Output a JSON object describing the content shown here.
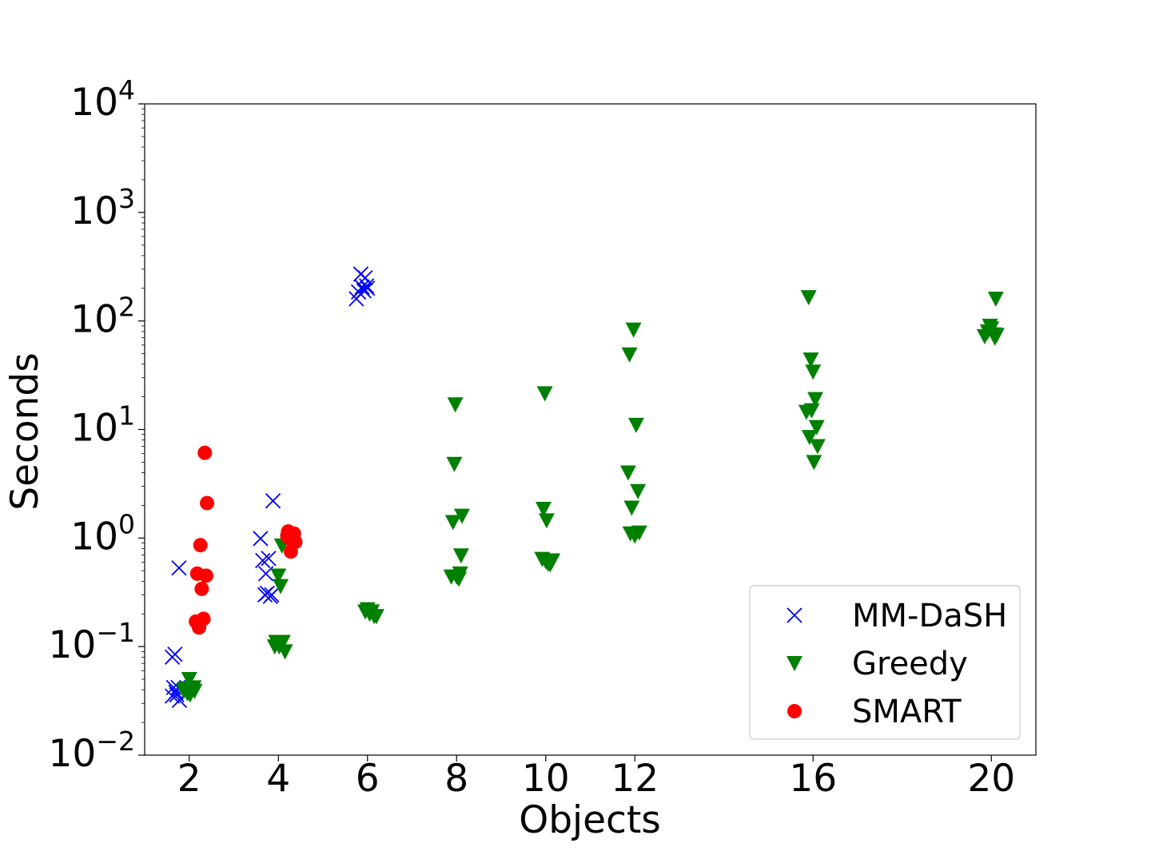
{
  "chart_data": {
    "type": "scatter",
    "title": "",
    "xlabel": "Objects",
    "ylabel": "Seconds",
    "xscale": "linear",
    "yscale": "log",
    "xlim": [
      1,
      21
    ],
    "ylim": [
      0.01,
      10000
    ],
    "x_ticks": [
      {
        "value": 2,
        "label": "2"
      },
      {
        "value": 4,
        "label": "4"
      },
      {
        "value": 6,
        "label": "6"
      },
      {
        "value": 8,
        "label": "8"
      },
      {
        "value": 10,
        "label": "10"
      },
      {
        "value": 12,
        "label": "12"
      },
      {
        "value": 16,
        "label": "16"
      },
      {
        "value": 20,
        "label": "20"
      }
    ],
    "y_ticks": [
      {
        "value": 0.01,
        "base": "10",
        "exp": "−2"
      },
      {
        "value": 0.1,
        "base": "10",
        "exp": "−1"
      },
      {
        "value": 1,
        "base": "10",
        "exp": "0"
      },
      {
        "value": 10,
        "base": "10",
        "exp": "1"
      },
      {
        "value": 100,
        "base": "10",
        "exp": "2"
      },
      {
        "value": 1000,
        "base": "10",
        "exp": "3"
      },
      {
        "value": 10000,
        "base": "10",
        "exp": "4"
      }
    ],
    "grid": false,
    "legend_position": "bottom-right",
    "series": [
      {
        "name": "MM-DaSH",
        "marker": "x",
        "color": "#0000ff",
        "points": [
          [
            1.62,
            0.035
          ],
          [
            1.65,
            0.042
          ],
          [
            1.7,
            0.038
          ],
          [
            1.72,
            0.036
          ],
          [
            1.78,
            0.032
          ],
          [
            1.75,
            0.042
          ],
          [
            1.62,
            0.08
          ],
          [
            1.68,
            0.085
          ],
          [
            1.77,
            0.53
          ],
          [
            3.6,
            0.99
          ],
          [
            3.65,
            0.62
          ],
          [
            3.7,
            0.3
          ],
          [
            3.72,
            0.47
          ],
          [
            3.75,
            0.31
          ],
          [
            3.78,
            0.65
          ],
          [
            3.82,
            0.29
          ],
          [
            3.85,
            0.3
          ],
          [
            3.88,
            2.2
          ],
          [
            5.75,
            160
          ],
          [
            5.8,
            185
          ],
          [
            5.85,
            270
          ],
          [
            5.88,
            205
          ],
          [
            5.92,
            190
          ],
          [
            5.95,
            250
          ],
          [
            5.98,
            210
          ],
          [
            6.0,
            200
          ]
        ]
      },
      {
        "name": "Greedy",
        "marker": "triangle-down",
        "color": "#008000",
        "points": [
          [
            1.88,
            0.039
          ],
          [
            1.92,
            0.041
          ],
          [
            1.96,
            0.037
          ],
          [
            2.0,
            0.05
          ],
          [
            2.02,
            0.036
          ],
          [
            2.05,
            0.04
          ],
          [
            2.1,
            0.042
          ],
          [
            2.12,
            0.039
          ],
          [
            3.92,
            0.1
          ],
          [
            3.95,
            0.11
          ],
          [
            4.0,
            0.45
          ],
          [
            4.02,
            0.1
          ],
          [
            4.05,
            0.36
          ],
          [
            4.08,
            0.85
          ],
          [
            4.1,
            0.11
          ],
          [
            4.15,
            0.09
          ],
          [
            5.95,
            0.21
          ],
          [
            6.0,
            0.22
          ],
          [
            6.05,
            0.2
          ],
          [
            6.1,
            0.21
          ],
          [
            6.15,
            0.19
          ],
          [
            6.2,
            0.19
          ],
          [
            7.88,
            0.44
          ],
          [
            7.92,
            1.4
          ],
          [
            7.95,
            4.8
          ],
          [
            7.97,
            17.0
          ],
          [
            8.0,
            0.44
          ],
          [
            8.05,
            0.42
          ],
          [
            8.08,
            0.47
          ],
          [
            8.12,
            1.6
          ],
          [
            8.1,
            0.69
          ],
          [
            9.92,
            0.64
          ],
          [
            9.95,
            1.85
          ],
          [
            9.98,
            21.5
          ],
          [
            10.0,
            0.61
          ],
          [
            10.02,
            1.45
          ],
          [
            10.05,
            0.58
          ],
          [
            10.1,
            0.57
          ],
          [
            10.15,
            0.62
          ],
          [
            11.85,
            4.0
          ],
          [
            11.88,
            49.0
          ],
          [
            11.9,
            1.1
          ],
          [
            11.93,
            1.9
          ],
          [
            11.97,
            83.0
          ],
          [
            12.0,
            1.05
          ],
          [
            12.03,
            11.0
          ],
          [
            12.07,
            2.7
          ],
          [
            12.1,
            1.12
          ],
          [
            15.85,
            14.5
          ],
          [
            15.9,
            165.0
          ],
          [
            15.92,
            8.5
          ],
          [
            15.95,
            44.0
          ],
          [
            15.97,
            15.0
          ],
          [
            16.0,
            34.0
          ],
          [
            16.02,
            5.0
          ],
          [
            16.05,
            19.0
          ],
          [
            16.08,
            10.5
          ],
          [
            16.1,
            7.0
          ],
          [
            19.85,
            72.0
          ],
          [
            19.92,
            80.0
          ],
          [
            19.97,
            90.0
          ],
          [
            20.0,
            85.0
          ],
          [
            20.05,
            75.0
          ],
          [
            20.08,
            70.0
          ],
          [
            20.1,
            160.0
          ],
          [
            20.12,
            74.0
          ]
        ]
      },
      {
        "name": "SMART",
        "marker": "circle",
        "color": "#ff0000",
        "points": [
          [
            2.15,
            0.17
          ],
          [
            2.18,
            0.47
          ],
          [
            2.22,
            0.15
          ],
          [
            2.25,
            0.86
          ],
          [
            2.28,
            0.34
          ],
          [
            2.32,
            0.18
          ],
          [
            2.35,
            6.1
          ],
          [
            2.38,
            0.45
          ],
          [
            2.4,
            2.1
          ],
          [
            4.2,
            1.05
          ],
          [
            4.22,
            1.15
          ],
          [
            4.25,
            1.0
          ],
          [
            4.28,
            0.75
          ],
          [
            4.32,
            0.93
          ],
          [
            4.35,
            1.1
          ],
          [
            4.38,
            0.92
          ]
        ]
      }
    ]
  }
}
